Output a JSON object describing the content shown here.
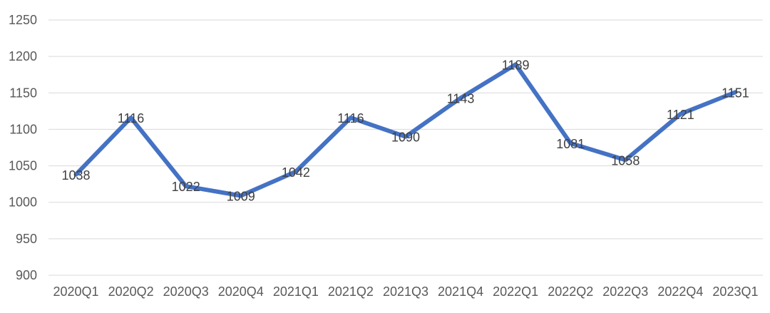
{
  "chart_data": {
    "type": "line",
    "title": "",
    "xlabel": "",
    "ylabel": "",
    "categories": [
      "2020Q1",
      "2020Q2",
      "2020Q3",
      "2020Q4",
      "2021Q1",
      "2021Q2",
      "2021Q3",
      "2021Q4",
      "2022Q1",
      "2022Q2",
      "2022Q3",
      "2022Q4",
      "2023Q1"
    ],
    "series": [
      {
        "values": [
          1038,
          1116,
          1022,
          1009,
          1042,
          1116,
          1090,
          1143,
          1189,
          1081,
          1058,
          1121,
          1151
        ],
        "color": "#4472c4"
      }
    ],
    "ylim": [
      900,
      1250
    ],
    "y_ticks": [
      900,
      950,
      1000,
      1050,
      1100,
      1150,
      1200,
      1250
    ],
    "grid": true,
    "legend": "none",
    "data_labels": true
  }
}
